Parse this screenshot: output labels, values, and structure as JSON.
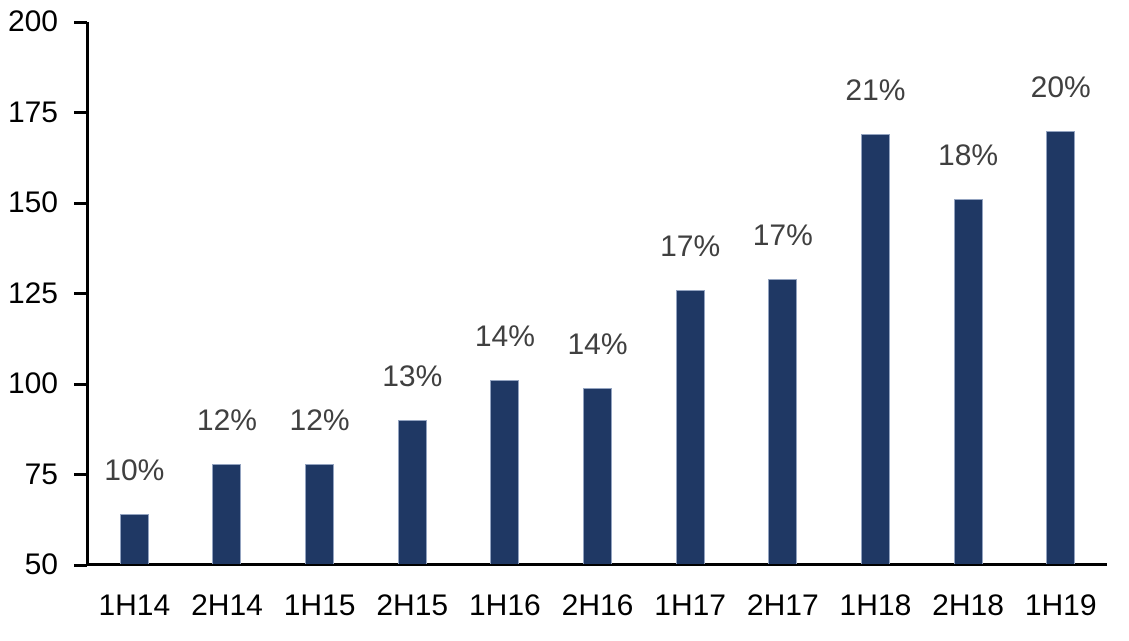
{
  "chart_data": {
    "type": "bar",
    "title": "",
    "xlabel": "",
    "ylabel": "",
    "categories": [
      "1H14",
      "2H14",
      "1H15",
      "2H15",
      "1H16",
      "2H16",
      "1H17",
      "2H17",
      "1H18",
      "2H18",
      "1H19"
    ],
    "values": [
      64,
      78,
      78,
      90,
      101,
      99,
      126,
      129,
      169,
      151,
      170
    ],
    "bar_labels": [
      "10%",
      "12%",
      "12%",
      "13%",
      "14%",
      "14%",
      "17%",
      "17%",
      "21%",
      "18%",
      "20%"
    ],
    "ylim": [
      50,
      200
    ],
    "y_ticks": [
      50,
      75,
      100,
      125,
      150,
      175,
      200
    ],
    "grid": "off",
    "legend": "none",
    "colors": {
      "bar_fill": "#1f3864",
      "bar_border": "#93a3c0",
      "data_label": "#404040",
      "axis_line": "#000000",
      "tick_label": "#000000"
    }
  }
}
